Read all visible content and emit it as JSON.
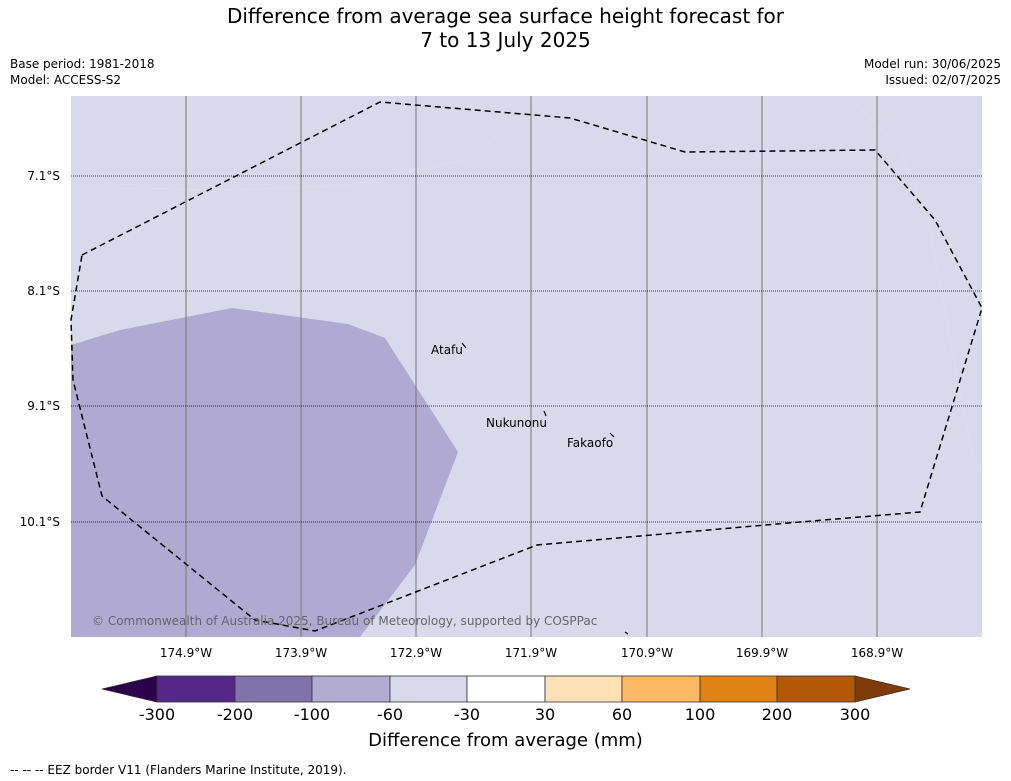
{
  "title_line1": "Difference from average sea surface height forecast for",
  "title_line2": "7 to 13 July 2025",
  "base_period": "Base period: 1981-2018",
  "model": "Model: ACCESS-S2",
  "model_run": "Model run: 30/06/2025",
  "issued": "Issued: 02/07/2025",
  "lat_labels": [
    "7.1°S",
    "8.1°S",
    "9.1°S",
    "10.1°S"
  ],
  "lon_labels": [
    "174.9°W",
    "173.9°W",
    "172.9°W",
    "171.9°W",
    "170.9°W",
    "169.9°W",
    "168.9°W"
  ],
  "places": [
    "Atafu",
    "Nukunonu",
    "Fakaofo"
  ],
  "copyright": "© Commonwealth of Australia 2025, Bureau of Meteorology, supported by COSPPac",
  "colorbar": {
    "title": "Difference from average (mm)",
    "ticks": [
      "-300",
      "-200",
      "-100",
      "-60",
      "-30",
      "30",
      "60",
      "100",
      "200",
      "300"
    ],
    "colors": [
      "#2d004b",
      "#542788",
      "#8073ac",
      "#b2abd2",
      "#d8daeb",
      "#ffffff",
      "#fee0b6",
      "#fdb863",
      "#e08214",
      "#b35806",
      "#7f3b08"
    ]
  },
  "fill_colors": {
    "light": "#d8daeb",
    "medium": "#b0aad2"
  },
  "footer": "--  --  -- EEZ border V11 (Flanders Marine Institute, 2019)."
}
